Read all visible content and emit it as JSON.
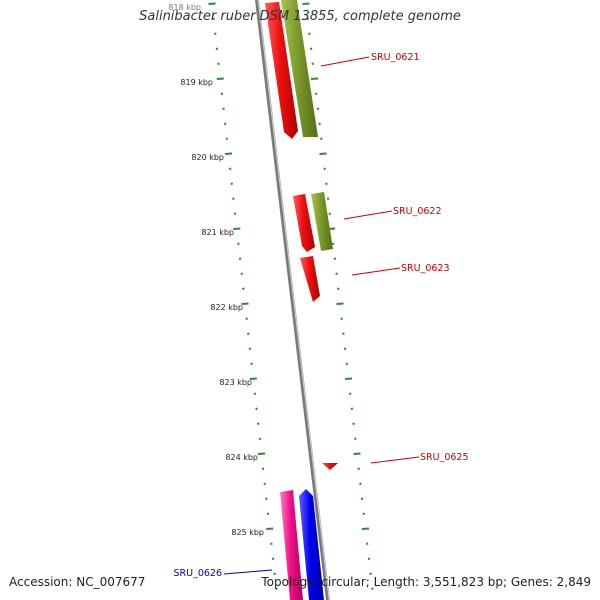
{
  "title": "Salinibacter ruber DSM 13855, complete genome",
  "footer": {
    "accession": "Accession: NC_007677",
    "summary": "Topology: circular; Length: 3,551,823 bp; Genes: 2,849"
  },
  "colors": {
    "backbone": "#7a7a7a",
    "ticks": "#2e8b2e",
    "label_red": "#cc0000",
    "label_blue": "#0000bb",
    "gene_red": "#ee1111",
    "gene_olive": "#7a9a2a",
    "gene_pink": "#ee1188",
    "gene_blue": "#0000ee"
  },
  "scale_labels": [
    "818 kbp",
    "819 kbp",
    "820 kbp",
    "821 kbp",
    "822 kbp",
    "823 kbp",
    "824 kbp",
    "825 kbp"
  ],
  "gene_labels": [
    {
      "name": "SRU_0621",
      "color": "red"
    },
    {
      "name": "SRU_0622",
      "color": "red"
    },
    {
      "name": "SRU_0623",
      "color": "red"
    },
    {
      "name": "SRU_0625",
      "color": "red"
    },
    {
      "name": "SRU_0626",
      "color": "blue"
    }
  ]
}
